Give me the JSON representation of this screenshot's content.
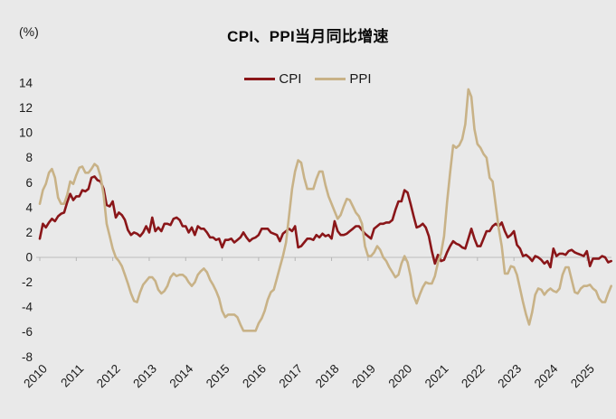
{
  "chart_data": {
    "type": "line",
    "title": "CPI、PPI当月同比增速",
    "unit_label": "(%)",
    "xlabel": "",
    "ylabel": "(%)",
    "ylim": [
      -8,
      14
    ],
    "yticks": [
      14,
      12,
      10,
      8,
      6,
      4,
      2,
      0,
      -2,
      -4,
      -6,
      -8
    ],
    "x_tick_labels": [
      "2010",
      "2011",
      "2012",
      "2013",
      "2014",
      "2015",
      "2016",
      "2017",
      "2018",
      "2019",
      "2020",
      "2021",
      "2022",
      "2023",
      "2024",
      "2025"
    ],
    "frequency": "monthly",
    "x_start": "2010-01",
    "x_end": "2025-09",
    "grid": false,
    "legend_position": "top-center",
    "background_color": "#E9E9E9",
    "axis_color": "#C6C6C6",
    "tick_color": "#B5B5B5",
    "text_color": "#1a1a1a",
    "series": [
      {
        "name": "CPI",
        "color": "#8A1619",
        "values": [
          1.5,
          2.7,
          2.4,
          2.8,
          3.1,
          2.9,
          3.3,
          3.5,
          3.6,
          4.4,
          5.1,
          4.6,
          4.9,
          4.9,
          5.4,
          5.3,
          5.5,
          6.4,
          6.5,
          6.2,
          6.1,
          5.5,
          4.2,
          4.1,
          4.5,
          3.2,
          3.6,
          3.4,
          3.0,
          2.2,
          1.8,
          2.0,
          1.9,
          1.7,
          2.0,
          2.5,
          2.0,
          3.2,
          2.1,
          2.4,
          2.1,
          2.7,
          2.7,
          2.6,
          3.1,
          3.2,
          3.0,
          2.5,
          2.5,
          2.0,
          2.4,
          1.8,
          2.5,
          2.3,
          2.3,
          2.0,
          1.6,
          1.6,
          1.4,
          1.5,
          0.8,
          1.4,
          1.4,
          1.5,
          1.2,
          1.4,
          1.6,
          2.0,
          1.6,
          1.3,
          1.5,
          1.6,
          1.8,
          2.3,
          2.3,
          2.3,
          2.0,
          1.9,
          1.8,
          1.3,
          1.9,
          2.1,
          2.3,
          2.1,
          2.5,
          0.8,
          0.9,
          1.2,
          1.5,
          1.5,
          1.4,
          1.8,
          1.6,
          1.9,
          1.7,
          1.8,
          1.5,
          2.9,
          2.1,
          1.8,
          1.8,
          1.9,
          2.1,
          2.3,
          2.5,
          2.5,
          2.2,
          1.9,
          1.7,
          1.5,
          2.3,
          2.5,
          2.7,
          2.7,
          2.8,
          2.8,
          3.0,
          3.8,
          4.5,
          4.5,
          5.4,
          5.2,
          4.3,
          3.3,
          2.4,
          2.5,
          2.7,
          2.4,
          1.7,
          0.5,
          -0.5,
          0.2,
          -0.3,
          -0.2,
          0.4,
          0.9,
          1.3,
          1.1,
          1.0,
          0.8,
          0.7,
          1.5,
          2.3,
          1.5,
          0.9,
          0.9,
          1.5,
          2.1,
          2.1,
          2.5,
          2.7,
          2.5,
          2.8,
          2.1,
          1.6,
          1.8,
          2.1,
          1.0,
          0.7,
          0.1,
          0.2,
          0.0,
          -0.3,
          0.1,
          0.0,
          -0.2,
          -0.5,
          -0.3,
          -0.8,
          0.7,
          0.1,
          0.3,
          0.3,
          0.2,
          0.5,
          0.6,
          0.4,
          0.3,
          0.2,
          0.1,
          0.5,
          -0.7,
          -0.1,
          -0.1,
          -0.1,
          0.1,
          0.0,
          -0.4,
          -0.3
        ]
      },
      {
        "name": "PPI",
        "color": "#C8B287",
        "values": [
          4.3,
          5.4,
          5.9,
          6.8,
          7.1,
          6.4,
          4.8,
          4.3,
          4.3,
          5.0,
          6.1,
          5.9,
          6.6,
          7.2,
          7.3,
          6.8,
          6.8,
          7.1,
          7.5,
          7.3,
          6.5,
          5.0,
          2.7,
          1.7,
          0.7,
          0.0,
          -0.3,
          -0.7,
          -1.4,
          -2.1,
          -2.9,
          -3.5,
          -3.6,
          -2.8,
          -2.2,
          -1.9,
          -1.6,
          -1.6,
          -1.9,
          -2.6,
          -2.9,
          -2.7,
          -2.3,
          -1.6,
          -1.3,
          -1.5,
          -1.4,
          -1.4,
          -1.6,
          -2.0,
          -2.3,
          -2.0,
          -1.4,
          -1.1,
          -0.9,
          -1.2,
          -1.8,
          -2.2,
          -2.7,
          -3.3,
          -4.3,
          -4.8,
          -4.6,
          -4.6,
          -4.6,
          -4.8,
          -5.4,
          -5.9,
          -5.9,
          -5.9,
          -5.9,
          -5.9,
          -5.3,
          -4.9,
          -4.3,
          -3.4,
          -2.8,
          -2.6,
          -1.7,
          -0.8,
          0.1,
          1.2,
          3.3,
          5.5,
          6.9,
          7.8,
          7.6,
          6.4,
          5.5,
          5.5,
          5.5,
          6.3,
          6.9,
          6.9,
          5.8,
          4.9,
          4.3,
          3.7,
          3.1,
          3.4,
          4.1,
          4.7,
          4.6,
          4.1,
          3.6,
          3.3,
          2.7,
          0.9,
          0.1,
          0.1,
          0.4,
          0.9,
          0.6,
          0.0,
          -0.3,
          -0.8,
          -1.2,
          -1.6,
          -1.4,
          -0.5,
          0.1,
          -0.4,
          -1.5,
          -3.1,
          -3.7,
          -3.0,
          -2.4,
          -2.0,
          -2.1,
          -2.1,
          -1.5,
          -0.4,
          0.3,
          1.7,
          4.4,
          6.8,
          9.0,
          8.8,
          9.0,
          9.5,
          10.7,
          13.5,
          12.9,
          10.3,
          9.1,
          8.8,
          8.3,
          8.0,
          6.4,
          6.1,
          4.2,
          2.3,
          0.9,
          -1.3,
          -1.3,
          -0.7,
          -0.8,
          -1.4,
          -2.5,
          -3.6,
          -4.6,
          -5.4,
          -4.4,
          -3.0,
          -2.5,
          -2.6,
          -3.0,
          -2.7,
          -2.5,
          -2.7,
          -2.8,
          -2.5,
          -1.4,
          -0.8,
          -0.8,
          -1.8,
          -2.8,
          -2.9,
          -2.5,
          -2.3,
          -2.3,
          -2.2,
          -2.5,
          -2.7,
          -3.3,
          -3.6,
          -3.6,
          -2.9,
          -2.3
        ]
      }
    ]
  }
}
